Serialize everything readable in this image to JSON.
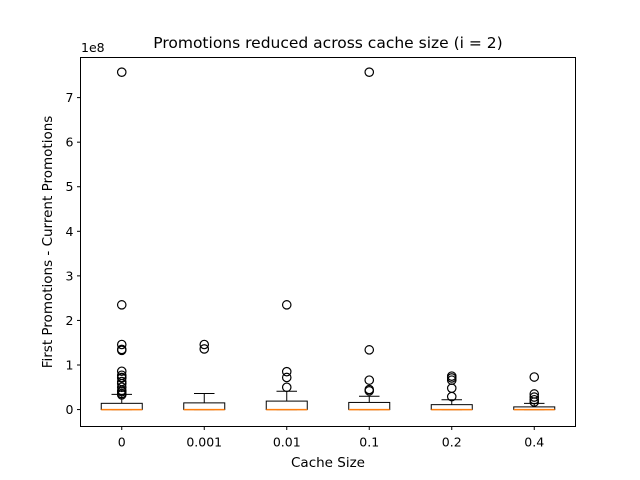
{
  "chart_data": {
    "type": "box",
    "title": "Promotions reduced across cache size (i = 2)",
    "xlabel": "Cache Size",
    "ylabel": "First Promotions - Current Promotions",
    "y_offset_label": "1e8",
    "y_unit_multiplier": 100000000,
    "ylim": [
      -0.38,
      7.9
    ],
    "yticks": [
      0,
      1,
      2,
      3,
      4,
      5,
      6,
      7
    ],
    "categories": [
      "0",
      "0.001",
      "0.01",
      "0.1",
      "0.2",
      "0.4"
    ],
    "boxes": [
      {
        "category": "0",
        "q1": 0.0,
        "median": 0.0,
        "q3": 0.14,
        "whisker_low": 0.0,
        "whisker_high": 0.34,
        "outliers": [
          7.57,
          2.35,
          1.46,
          1.35,
          1.33,
          0.86,
          0.77,
          0.72,
          0.71,
          0.63,
          0.58,
          0.5,
          0.43,
          0.4,
          0.36,
          0.33
        ]
      },
      {
        "category": "0.001",
        "q1": 0.0,
        "median": 0.0,
        "q3": 0.15,
        "whisker_low": 0.0,
        "whisker_high": 0.36,
        "outliers": [
          1.46,
          1.36
        ]
      },
      {
        "category": "0.01",
        "q1": 0.0,
        "median": 0.0,
        "q3": 0.19,
        "whisker_low": 0.0,
        "whisker_high": 0.41,
        "outliers": [
          2.35,
          0.85,
          0.72,
          0.5
        ]
      },
      {
        "category": "0.1",
        "q1": 0.0,
        "median": 0.0,
        "q3": 0.16,
        "whisker_low": 0.0,
        "whisker_high": 0.3,
        "outliers": [
          7.57,
          1.34,
          0.66,
          0.45,
          0.42
        ]
      },
      {
        "category": "0.2",
        "q1": 0.0,
        "median": 0.0,
        "q3": 0.11,
        "whisker_low": 0.0,
        "whisker_high": 0.22,
        "outliers": [
          0.75,
          0.71,
          0.66,
          0.48,
          0.29
        ]
      },
      {
        "category": "0.4",
        "q1": 0.0,
        "median": 0.0,
        "q3": 0.06,
        "whisker_low": 0.0,
        "whisker_high": 0.14,
        "outliers": [
          0.73,
          0.35,
          0.28,
          0.22,
          0.17
        ]
      }
    ],
    "grid": false,
    "legend": "none",
    "colors": {
      "box": "#000000",
      "median": "#ff7f0e",
      "outlier_edge": "#000000",
      "background": "#ffffff"
    }
  }
}
